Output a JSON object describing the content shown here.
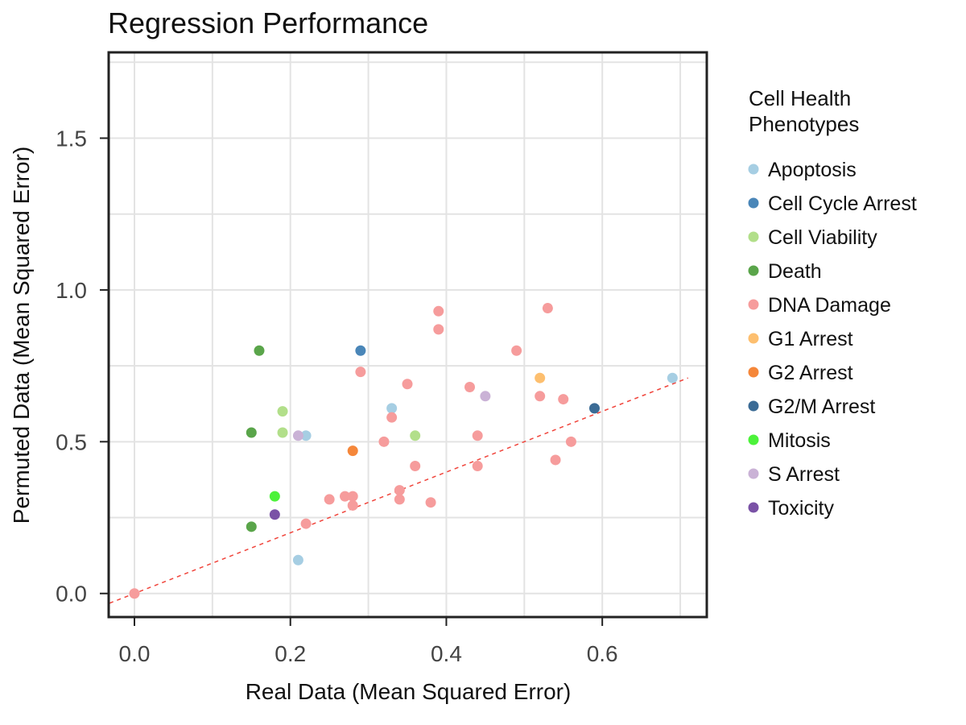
{
  "chart_data": {
    "type": "scatter",
    "title": "Regression Performance",
    "xlabel": "Real Data (Mean Squared Error)",
    "ylabel": "Permuted Data (Mean Squared Error)",
    "xlim": [
      -0.032,
      0.733
    ],
    "ylim": [
      -0.075,
      1.78
    ],
    "x_ticks": [
      "0.0",
      "0.2",
      "0.4",
      "0.6"
    ],
    "x_tick_values": [
      0.0,
      0.2,
      0.4,
      0.6
    ],
    "y_ticks": [
      "0.0",
      "0.5",
      "1.0",
      "1.5"
    ],
    "y_tick_values": [
      0.0,
      0.5,
      1.0,
      1.5
    ],
    "grid": true,
    "reference_line": {
      "style": "dashed",
      "color": "#f0433a",
      "from": [
        -0.032,
        -0.032
      ],
      "to": [
        0.71,
        0.71
      ]
    },
    "legend": {
      "title_line1": "Cell Health",
      "title_line2": "Phenotypes",
      "placement": "right"
    },
    "series": [
      {
        "name": "Apoptosis",
        "color": "#a6cee3",
        "points": [
          [
            0.21,
            0.11
          ],
          [
            0.22,
            0.52
          ],
          [
            0.33,
            0.61
          ],
          [
            0.69,
            0.71
          ]
        ]
      },
      {
        "name": "Cell Cycle Arrest",
        "color": "#4a86b8",
        "points": [
          [
            0.29,
            0.8
          ]
        ]
      },
      {
        "name": "Cell Viability",
        "color": "#b2df8a",
        "points": [
          [
            0.19,
            0.6
          ],
          [
            0.19,
            0.53
          ],
          [
            0.36,
            0.52
          ]
        ]
      },
      {
        "name": "Death",
        "color": "#5aa54a",
        "points": [
          [
            0.16,
            0.8
          ],
          [
            0.15,
            0.53
          ],
          [
            0.15,
            0.22
          ]
        ]
      },
      {
        "name": "DNA Damage",
        "color": "#f69c9c",
        "points": [
          [
            0.0,
            0.0
          ],
          [
            0.22,
            0.23
          ],
          [
            0.25,
            0.31
          ],
          [
            0.27,
            0.32
          ],
          [
            0.28,
            0.32
          ],
          [
            0.28,
            0.29
          ],
          [
            0.29,
            0.73
          ],
          [
            0.32,
            0.5
          ],
          [
            0.33,
            0.58
          ],
          [
            0.34,
            0.34
          ],
          [
            0.34,
            0.31
          ],
          [
            0.35,
            0.69
          ],
          [
            0.36,
            0.42
          ],
          [
            0.38,
            0.3
          ],
          [
            0.39,
            0.93
          ],
          [
            0.39,
            0.87
          ],
          [
            0.43,
            0.68
          ],
          [
            0.44,
            0.52
          ],
          [
            0.44,
            0.42
          ],
          [
            0.49,
            0.8
          ],
          [
            0.52,
            0.65
          ],
          [
            0.53,
            0.94
          ],
          [
            0.54,
            0.44
          ],
          [
            0.55,
            0.64
          ],
          [
            0.56,
            0.5
          ]
        ]
      },
      {
        "name": "G1 Arrest",
        "color": "#fdbf6f",
        "points": [
          [
            0.52,
            0.71
          ]
        ]
      },
      {
        "name": "G2 Arrest",
        "color": "#f5873a",
        "points": [
          [
            0.28,
            0.47
          ]
        ]
      },
      {
        "name": "G2/M Arrest",
        "color": "#3b6b95",
        "points": [
          [
            0.59,
            0.61
          ]
        ]
      },
      {
        "name": "Mitosis",
        "color": "#4cf23a",
        "points": [
          [
            0.18,
            0.32
          ]
        ]
      },
      {
        "name": "S Arrest",
        "color": "#cab2d6",
        "points": [
          [
            0.21,
            0.52
          ],
          [
            0.45,
            0.65
          ]
        ]
      },
      {
        "name": "Toxicity",
        "color": "#7a52a6",
        "points": [
          [
            0.18,
            0.26
          ]
        ]
      }
    ]
  }
}
